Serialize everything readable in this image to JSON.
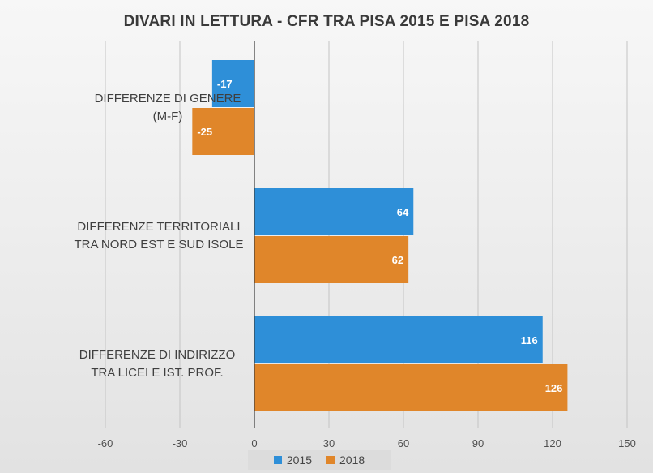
{
  "chart_data": {
    "type": "bar",
    "orientation": "horizontal",
    "title": "DIVARI IN LETTURA - CFR TRA PISA 2015 E PISA 2018",
    "categories": [
      [
        "DIFFERENZE DI GENERE",
        "(M-F)"
      ],
      [
        "DIFFERENZE TERRITORIALI",
        "TRA NORD EST E SUD ISOLE"
      ],
      [
        "DIFFERENZE DI INDIRIZZO",
        "TRA LICEI E IST. PROF."
      ]
    ],
    "series": [
      {
        "name": "2015",
        "values": [
          -17,
          64,
          116
        ],
        "color": "#2e8fd8"
      },
      {
        "name": "2018",
        "values": [
          -25,
          62,
          126
        ],
        "color": "#e0862a"
      }
    ],
    "xlim": [
      -60,
      150
    ],
    "xticks": [
      "-60",
      "-30",
      "0",
      "30",
      "60",
      "90",
      "120",
      "150"
    ],
    "data_labels": [
      [
        "-17",
        "64",
        "116"
      ],
      [
        "-25",
        "62",
        "126"
      ]
    ],
    "grid": true,
    "legend_position": "bottom"
  }
}
